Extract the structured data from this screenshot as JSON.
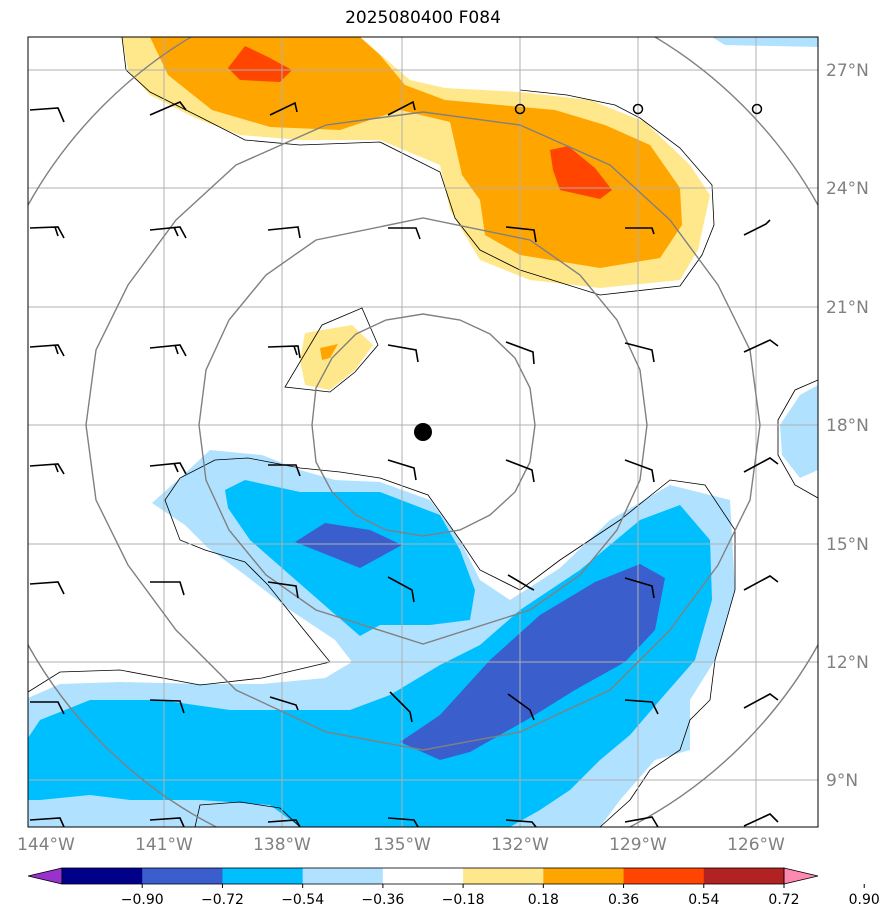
{
  "title": "2025080400 F084",
  "map": {
    "lon_range": [
      -144.0,
      -125.0
    ],
    "lat_range": [
      8.0,
      27.8
    ],
    "lon_ticks": [
      {
        "value": -144,
        "label": "144°W"
      },
      {
        "value": -141,
        "label": "141°W"
      },
      {
        "value": -138,
        "label": "138°W"
      },
      {
        "value": -135,
        "label": "135°W"
      },
      {
        "value": -132,
        "label": "132°W"
      },
      {
        "value": -129,
        "label": "129°W"
      },
      {
        "value": -126,
        "label": "126°W"
      }
    ],
    "lat_ticks": [
      {
        "value": 9,
        "label": "9°N"
      },
      {
        "value": 12,
        "label": "12°N"
      },
      {
        "value": 15,
        "label": "15°N"
      },
      {
        "value": 18,
        "label": "18°N"
      },
      {
        "value": 21,
        "label": "21°N"
      },
      {
        "value": 24,
        "label": "24°N"
      },
      {
        "value": 27,
        "label": "27°N"
      }
    ],
    "storm_center": {
      "lon": -134.6,
      "lat": 17.8
    },
    "range_ring_radii_deg": [
      5.6,
      8.4,
      11.2,
      14.0
    ],
    "calm_markers": [
      {
        "lon": -132.0,
        "lat": 26.0
      },
      {
        "lon": -129.0,
        "lat": 26.0
      },
      {
        "lon": -126.0,
        "lat": 26.0
      }
    ]
  },
  "colorbar": {
    "labels": [
      "−0.90",
      "−0.72",
      "−0.54",
      "−0.36",
      "−0.18",
      "0.18",
      "0.36",
      "0.54",
      "0.72",
      "0.90"
    ],
    "colors": [
      "#9932cc",
      "#00008b",
      "#3a5fcd",
      "#00bfff",
      "#b0e2ff",
      "#ffffff",
      "#ffe88c",
      "#ffa500",
      "#ff4500",
      "#b22222",
      "#ff88b0"
    ]
  }
}
